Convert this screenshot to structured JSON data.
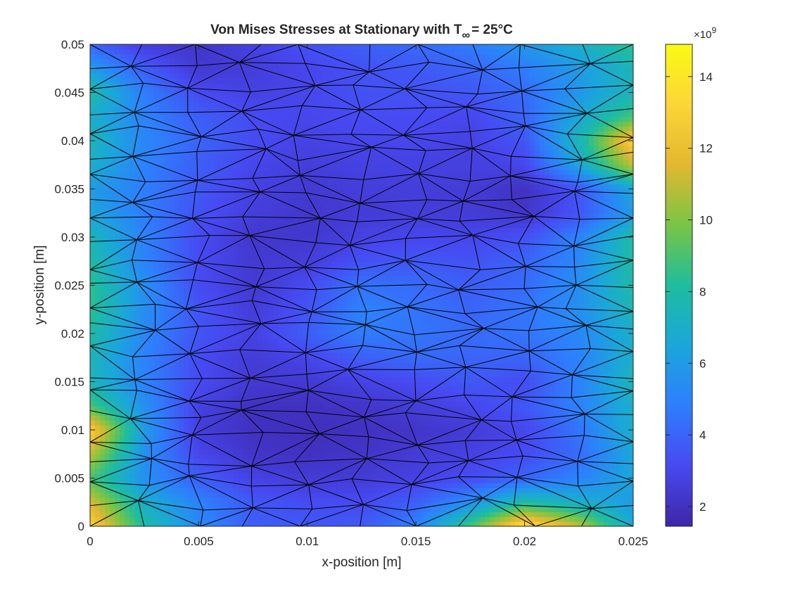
{
  "chart_data": {
    "type": "heatmap",
    "title": {
      "prefix": "Von Mises Stresses at Stationary with T",
      "subscript": "∞",
      "suffix": "= 25°C"
    },
    "xlabel": "x-position [m]",
    "ylabel": "y-position [m]",
    "xlim": [
      0,
      0.025
    ],
    "ylim": [
      0,
      0.05
    ],
    "x_ticks": [
      "0",
      "0.005",
      "0.01",
      "0.015",
      "0.02",
      "0.025"
    ],
    "x_tick_values": [
      0,
      0.005,
      0.01,
      0.015,
      0.02,
      0.025
    ],
    "y_ticks": [
      "0",
      "0.005",
      "0.01",
      "0.015",
      "0.02",
      "0.025",
      "0.03",
      "0.035",
      "0.04",
      "0.045",
      "0.05"
    ],
    "y_tick_values": [
      0,
      0.005,
      0.01,
      0.015,
      0.02,
      0.025,
      0.03,
      0.035,
      0.04,
      0.045,
      0.05
    ],
    "colorbar": {
      "exponent_label": "×10",
      "exponent_power": "9",
      "range": [
        1.45,
        14.9
      ],
      "ticks": [
        "2",
        "4",
        "6",
        "8",
        "10",
        "12",
        "14"
      ],
      "tick_values": [
        2,
        4,
        6,
        8,
        10,
        12,
        14
      ],
      "colormap": [
        "#3e26a8",
        "#4749f1",
        "#2e7efe",
        "#1aa7da",
        "#1ebd9e",
        "#79c545",
        "#e3b82f",
        "#fcd537",
        "#f9fb15"
      ]
    },
    "mesh_color": "#000000",
    "stress_field": {
      "x": [
        0,
        0.0025,
        0.005,
        0.0075,
        0.01,
        0.0125,
        0.015,
        0.0175,
        0.02,
        0.0225,
        0.025
      ],
      "y": [
        0,
        0.0025,
        0.005,
        0.0075,
        0.01,
        0.0125,
        0.015,
        0.0175,
        0.02,
        0.0225,
        0.025,
        0.0275,
        0.03,
        0.0325,
        0.035,
        0.0375,
        0.04,
        0.0425,
        0.045,
        0.0475,
        0.05
      ],
      "values_e9": [
        [
          13.0,
          8.0,
          5.2,
          3.8,
          3.6,
          3.6,
          5.0,
          9.0,
          14.0,
          11.0,
          6.5
        ],
        [
          11.5,
          7.0,
          5.0,
          3.6,
          3.2,
          3.2,
          3.8,
          5.5,
          8.0,
          7.0,
          6.0
        ],
        [
          9.0,
          5.5,
          3.8,
          2.8,
          2.5,
          2.5,
          2.8,
          3.2,
          4.0,
          5.0,
          6.5
        ],
        [
          11.0,
          5.5,
          3.0,
          2.2,
          2.0,
          2.2,
          2.5,
          2.8,
          3.2,
          4.2,
          6.5
        ],
        [
          13.0,
          6.0,
          2.6,
          2.0,
          1.9,
          2.0,
          2.2,
          2.5,
          3.0,
          4.5,
          7.0
        ],
        [
          9.0,
          5.5,
          2.8,
          2.0,
          2.0,
          2.2,
          2.6,
          3.0,
          3.6,
          5.0,
          7.0
        ],
        [
          7.5,
          5.0,
          3.2,
          2.4,
          2.4,
          2.8,
          3.2,
          3.6,
          3.2,
          5.0,
          7.5
        ],
        [
          7.5,
          5.0,
          3.2,
          2.5,
          3.0,
          3.8,
          4.2,
          4.0,
          4.0,
          5.0,
          7.0
        ],
        [
          8.0,
          5.2,
          3.5,
          2.8,
          3.8,
          4.8,
          4.5,
          4.2,
          4.5,
          5.2,
          7.0
        ],
        [
          8.5,
          5.5,
          3.5,
          2.5,
          3.5,
          5.0,
          4.5,
          4.0,
          4.5,
          5.5,
          7.5
        ],
        [
          8.5,
          5.5,
          3.2,
          2.4,
          3.2,
          4.5,
          4.2,
          3.8,
          4.2,
          5.5,
          8.0
        ],
        [
          8.0,
          5.0,
          3.2,
          2.4,
          2.6,
          3.4,
          3.6,
          3.4,
          4.0,
          5.2,
          8.0
        ],
        [
          7.5,
          5.0,
          3.2,
          2.3,
          2.3,
          2.8,
          3.0,
          3.0,
          3.4,
          5.0,
          8.0
        ],
        [
          6.5,
          4.8,
          3.4,
          2.6,
          2.3,
          2.5,
          2.6,
          2.5,
          2.2,
          3.5,
          6.0
        ],
        [
          6.0,
          4.8,
          3.6,
          2.8,
          2.4,
          2.6,
          2.6,
          2.5,
          2.0,
          3.5,
          6.5
        ],
        [
          7.0,
          5.0,
          3.8,
          3.0,
          2.6,
          2.8,
          2.8,
          2.7,
          3.0,
          6.5,
          11.0
        ],
        [
          7.5,
          5.2,
          4.0,
          3.2,
          2.8,
          3.0,
          3.0,
          2.8,
          3.5,
          7.5,
          13.0
        ],
        [
          7.0,
          5.0,
          3.8,
          3.2,
          3.0,
          3.2,
          3.2,
          3.0,
          4.0,
          6.5,
          9.0
        ],
        [
          8.0,
          4.8,
          3.2,
          2.8,
          3.0,
          3.4,
          3.4,
          3.6,
          4.2,
          5.8,
          7.5
        ],
        [
          6.0,
          3.8,
          2.4,
          2.6,
          3.0,
          3.4,
          3.6,
          4.0,
          4.8,
          6.0,
          7.5
        ],
        [
          4.0,
          2.6,
          2.2,
          2.8,
          3.4,
          3.8,
          4.2,
          4.8,
          5.8,
          7.0,
          8.5
        ]
      ]
    }
  }
}
